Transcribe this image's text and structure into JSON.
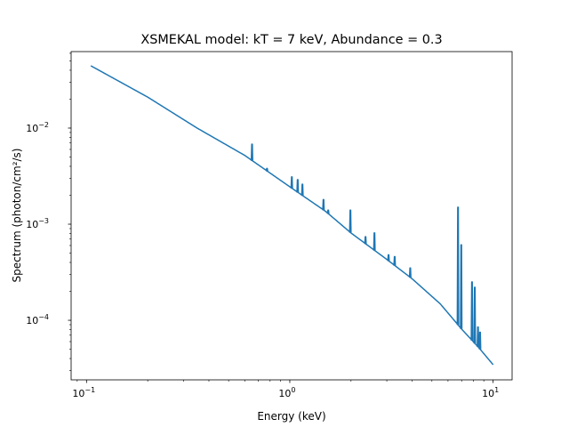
{
  "chart_data": {
    "type": "line",
    "title": "XSMEKAL model: kT = 7 keV, Abundance = 0.3",
    "xlabel": "Energy (keV)",
    "ylabel": "Spectrum (photon/cm²/s)",
    "xscale": "log",
    "yscale": "log",
    "xlim": [
      0.084,
      12.4
    ],
    "ylim": [
      2.4e-05,
      0.0625
    ],
    "grid": false,
    "color": "#1f77b4",
    "xticks": [
      {
        "value": 0.1,
        "base": "10",
        "exp": "−1"
      },
      {
        "value": 1,
        "base": "10",
        "exp": "0"
      },
      {
        "value": 10,
        "base": "10",
        "exp": "1"
      }
    ],
    "yticks": [
      {
        "value": 0.0001,
        "base": "10",
        "exp": "−4"
      },
      {
        "value": 0.001,
        "base": "10",
        "exp": "−3"
      },
      {
        "value": 0.01,
        "base": "10",
        "exp": "−2"
      }
    ],
    "continuum": {
      "x": [
        0.105,
        0.2,
        0.35,
        0.6,
        1.0,
        1.5,
        2.0,
        3.0,
        4.0,
        5.5,
        7.0,
        8.5,
        10.0
      ],
      "y": [
        0.0445,
        0.021,
        0.01,
        0.0052,
        0.00245,
        0.00136,
        0.00081,
        0.00043,
        0.00027,
        0.000148,
        8.1e-05,
        5.2e-05,
        3.45e-05
      ]
    },
    "lines": {
      "energy": [
        0.65,
        0.77,
        1.02,
        1.09,
        1.15,
        1.46,
        1.54,
        1.98,
        2.35,
        2.6,
        3.05,
        3.27,
        3.9,
        6.7,
        6.95,
        7.85,
        8.1,
        8.4,
        8.6
      ],
      "peak": [
        0.0068,
        0.0038,
        0.0031,
        0.0029,
        0.0026,
        0.0018,
        0.0014,
        0.0014,
        0.00074,
        0.00081,
        0.00048,
        0.00046,
        0.00035,
        0.0015,
        0.00061,
        0.00025,
        0.00022,
        8.5e-05,
        7.5e-05
      ]
    }
  }
}
